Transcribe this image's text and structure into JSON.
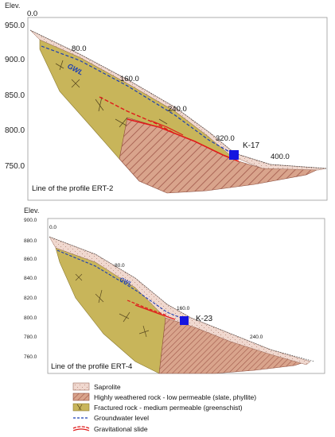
{
  "profile_top": {
    "axis_title": "Elev.",
    "y_ticks": [
      "950.0",
      "900.0",
      "850.0",
      "800.0",
      "750.0"
    ],
    "distance_labels": [
      "0.0",
      "80.0",
      "160.0",
      "240.0",
      "320.0",
      "400.0"
    ],
    "gwl_label": "GWL",
    "borehole": "K-17",
    "caption": "Line of the profile ERT-2"
  },
  "profile_bottom": {
    "axis_title": "Elev.",
    "y_ticks": [
      "900.0",
      "880.0",
      "860.0",
      "840.0",
      "820.0",
      "800.0",
      "780.0",
      "760.0"
    ],
    "distance_labels": [
      "0.0",
      "80.0",
      "160.0",
      "240.0"
    ],
    "gwl_label": "GWL",
    "borehole": "K-23",
    "caption": "Line of the profile ERT-4"
  },
  "legend": {
    "items": [
      {
        "label": "Saprolite",
        "symbol": "saprolite-swatch"
      },
      {
        "label": "Highly weathered rock - low permeable (slate, phyllite)",
        "symbol": "hatched-swatch"
      },
      {
        "label": "Fractured rock - medium permeable (greenschist)",
        "symbol": "fractured-swatch"
      },
      {
        "label": "Groundwater level",
        "symbol": "dashed-blue-line"
      },
      {
        "label": "Gravitational slide",
        "symbol": "red-slide-line"
      }
    ]
  },
  "colors": {
    "fractured": "#c8b55a",
    "weathered": "#d9a48c",
    "hatch": "#a0584a",
    "saprolite": "#f0d8cf",
    "gwl": "#1a3db5",
    "slide": "#e01a1a",
    "borehole": "#1515e0"
  }
}
